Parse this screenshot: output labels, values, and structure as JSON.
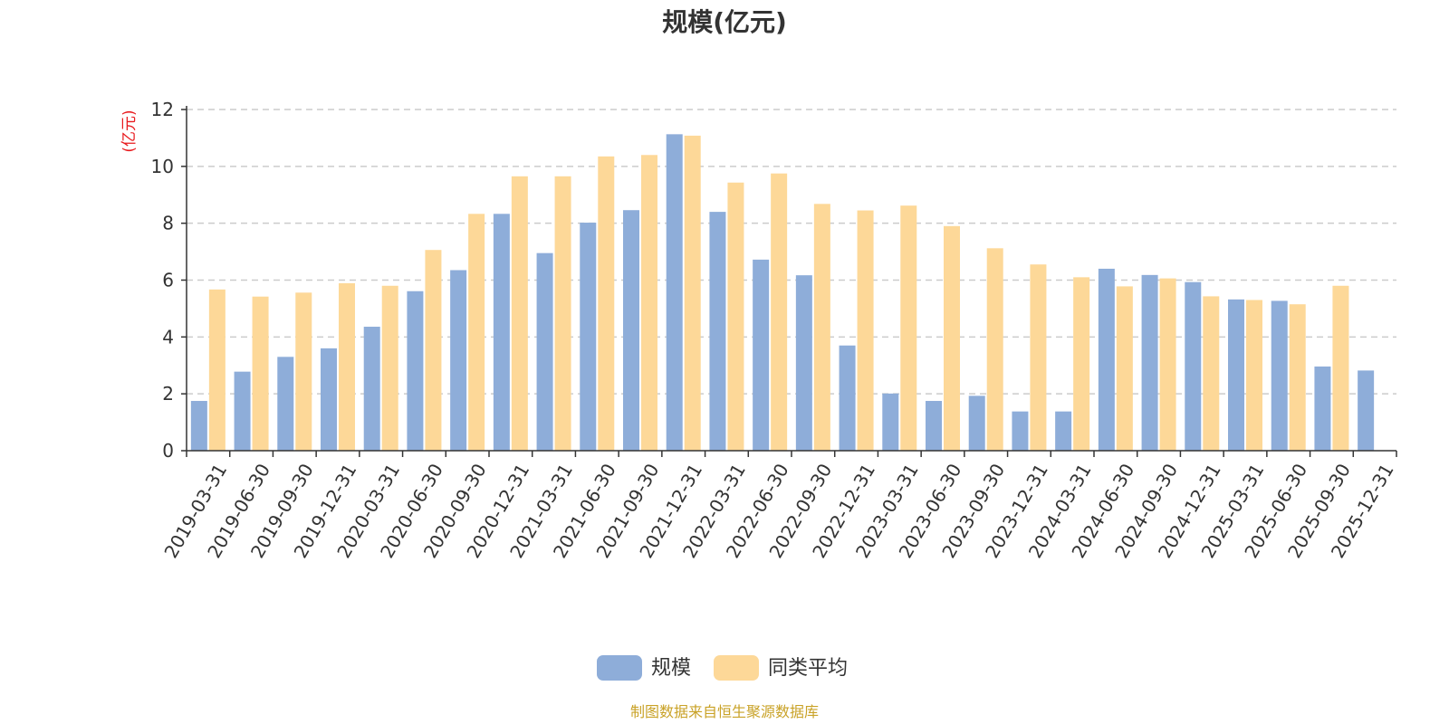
{
  "chart_data": {
    "type": "bar",
    "title": "规模(亿元)",
    "ylabel": "(亿元)",
    "ylim": [
      0,
      12
    ],
    "yticks": [
      0,
      2,
      4,
      6,
      8,
      10,
      12
    ],
    "grid": true,
    "legend_position": "bottom-center",
    "categories": [
      "2019-03-31",
      "2019-06-30",
      "2019-09-30",
      "2019-12-31",
      "2020-03-31",
      "2020-06-30",
      "2020-09-30",
      "2020-12-31",
      "2021-03-31",
      "2021-06-30",
      "2021-09-30",
      "2021-12-31",
      "2022-03-31",
      "2022-06-30",
      "2022-09-30",
      "2022-12-31",
      "2023-03-31",
      "2023-06-30",
      "2023-09-30",
      "2023-12-31",
      "2024-03-31",
      "2024-06-30",
      "2024-09-30",
      "2024-12-31",
      "2025-03-31",
      "2025-06-30",
      "2025-09-30",
      "2025-12-31"
    ],
    "series": [
      {
        "name": "规模",
        "color": "#8eadd9",
        "values": [
          1.75,
          2.78,
          3.3,
          3.6,
          4.36,
          5.61,
          6.35,
          8.33,
          6.95,
          8.02,
          8.46,
          11.13,
          8.4,
          6.72,
          6.17,
          3.7,
          2.01,
          1.75,
          1.93,
          1.38,
          1.38,
          6.4,
          6.18,
          5.93,
          5.32,
          5.27,
          2.96,
          2.82
        ]
      },
      {
        "name": "同类平均",
        "color": "#fdd898",
        "values": [
          5.67,
          5.42,
          5.56,
          5.89,
          5.8,
          7.06,
          8.33,
          9.65,
          9.65,
          10.35,
          10.4,
          11.08,
          9.43,
          9.75,
          8.68,
          8.45,
          8.62,
          7.9,
          7.12,
          6.55,
          6.1,
          5.78,
          6.06,
          5.43,
          5.3,
          5.15,
          5.8,
          null
        ]
      }
    ]
  },
  "source_text": "制图数据来自恒生聚源数据库"
}
